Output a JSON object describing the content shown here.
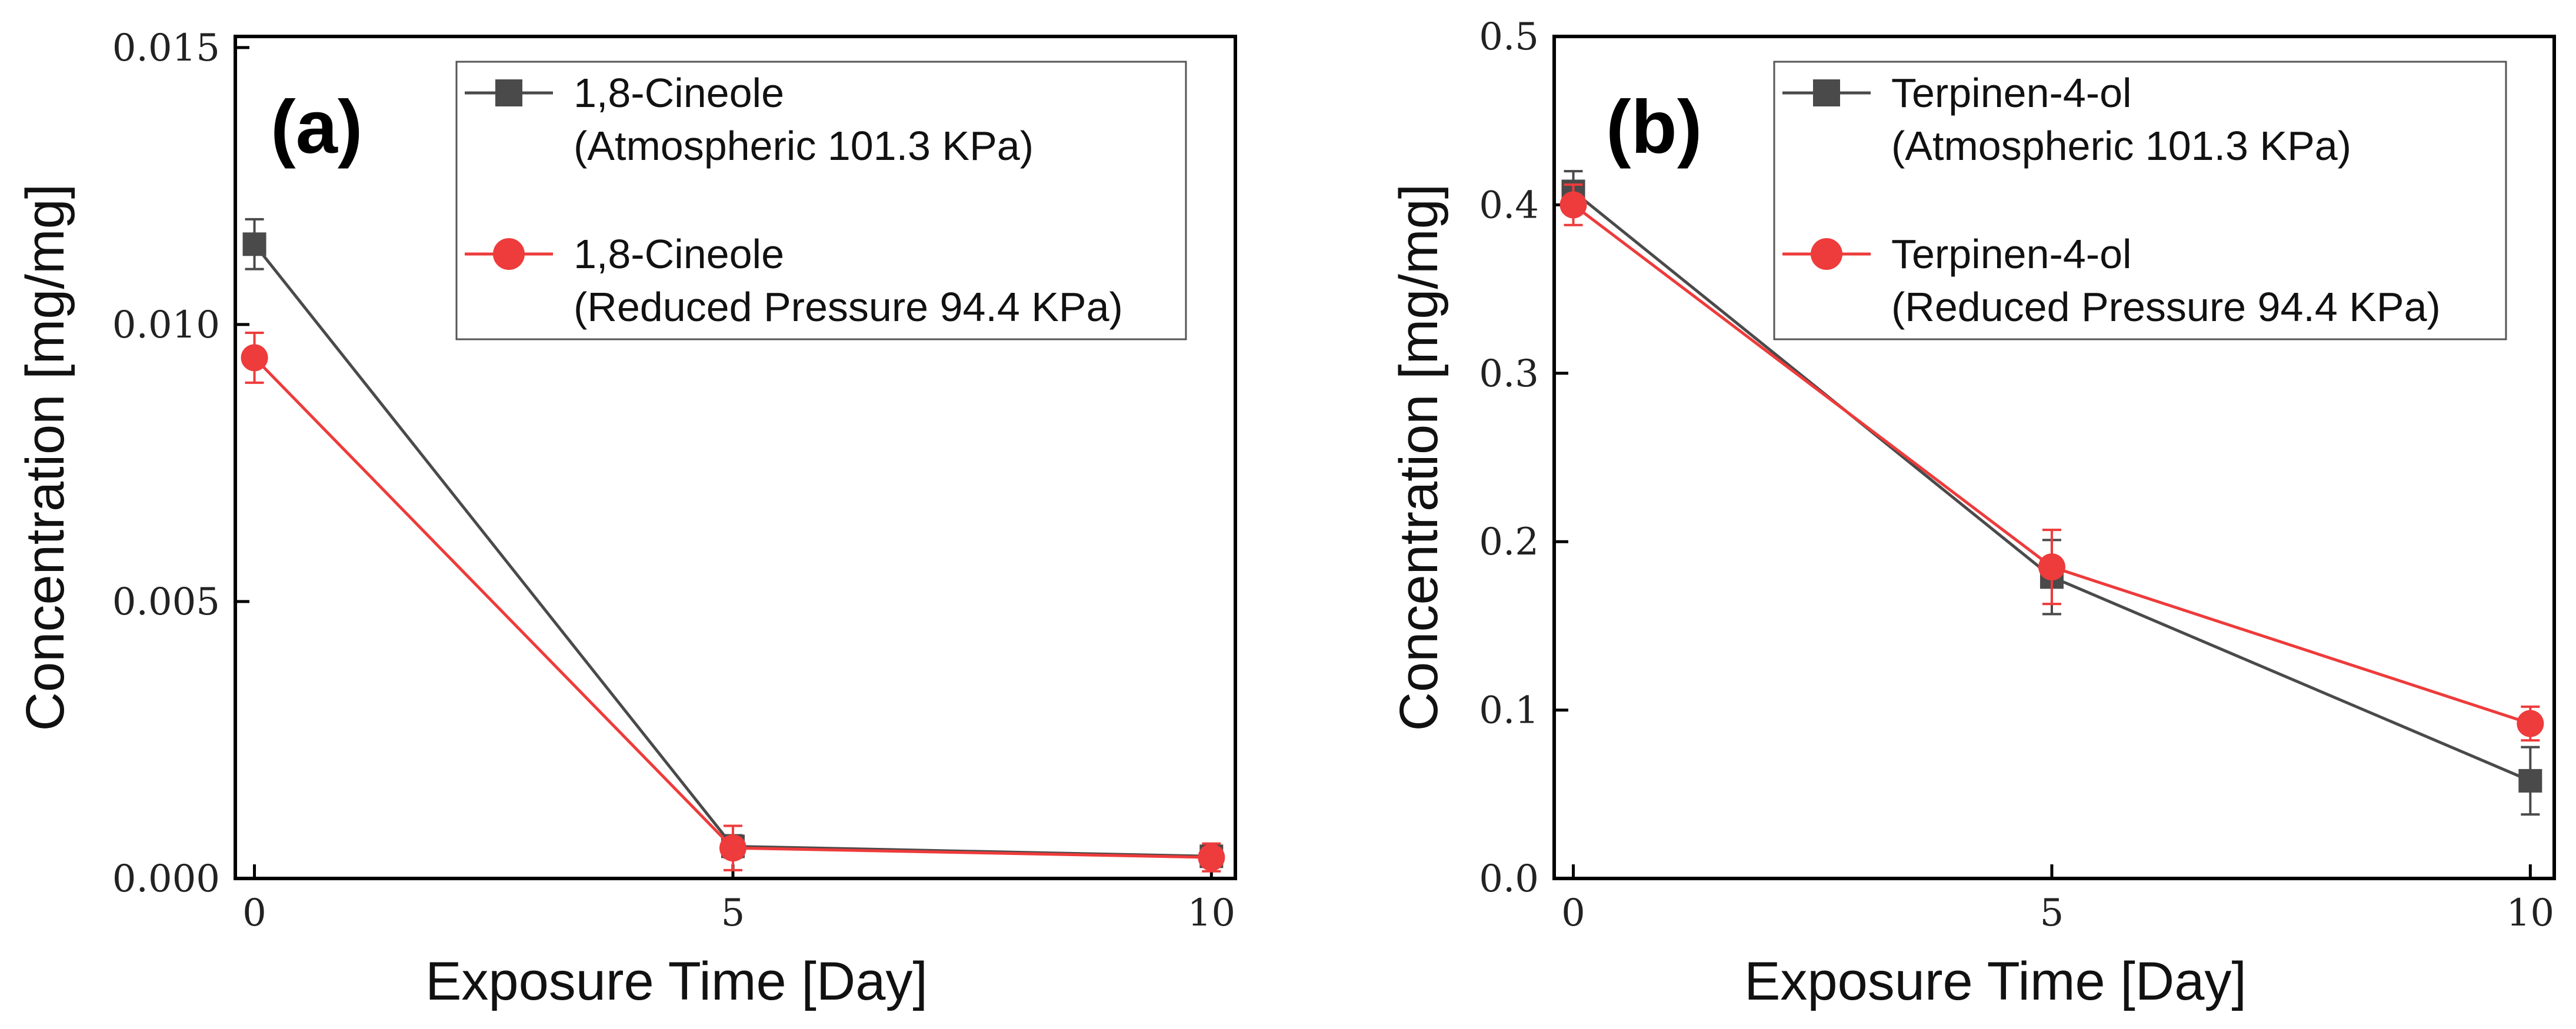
{
  "colors": {
    "series_atm": "#4a4a4a",
    "series_red": "#ee3b3b",
    "axis": "#000000"
  },
  "chart_data": [
    {
      "type": "line",
      "panel_label": "(a)",
      "xlabel": "Exposure Time [Day]",
      "ylabel": "Concentration [mg/mg]",
      "x": [
        0,
        5,
        10
      ],
      "xticks": [
        "0",
        "5",
        "10"
      ],
      "xlim": [
        -0.2,
        10.25
      ],
      "ylim": [
        0,
        0.0152
      ],
      "yticks": [
        "0.000",
        "0.005",
        "0.010",
        "0.015"
      ],
      "ytick_values": [
        0,
        0.005,
        0.01,
        0.015
      ],
      "legend_position": "top-right",
      "series": [
        {
          "name": "1,8-Cineole",
          "name_line2": "(Atmospheric 101.3 KPa)",
          "marker": "square",
          "color": "#4a4a4a",
          "values": [
            0.01145,
            0.00058,
            0.0004
          ],
          "errors": [
            0.00045,
            0.0002,
            0.00015
          ]
        },
        {
          "name": "1,8-Cineole",
          "name_line2": "(Reduced Pressure 94.4 KPa)",
          "marker": "circle",
          "color": "#ee3b3b",
          "values": [
            0.0094,
            0.00055,
            0.00038
          ],
          "errors": [
            0.00045,
            0.0004,
            0.00025
          ]
        }
      ]
    },
    {
      "type": "line",
      "panel_label": "(b)",
      "xlabel": "Exposure Time [Day]",
      "ylabel": "Concentration [mg/mg]",
      "x": [
        0,
        5,
        10
      ],
      "xticks": [
        "0",
        "5",
        "10"
      ],
      "xlim": [
        -0.2,
        10.25
      ],
      "ylim": [
        0,
        0.5
      ],
      "yticks": [
        "0.0",
        "0.1",
        "0.2",
        "0.3",
        "0.4",
        "0.5"
      ],
      "ytick_values": [
        0,
        0.1,
        0.2,
        0.3,
        0.4,
        0.5
      ],
      "legend_position": "top-right",
      "series": [
        {
          "name": "Terpinen-4-ol",
          "name_line2": "(Atmospheric 101.3 KPa)",
          "marker": "square",
          "color": "#4a4a4a",
          "values": [
            0.408,
            0.179,
            0.058
          ],
          "errors": [
            0.012,
            0.022,
            0.02
          ]
        },
        {
          "name": "Terpinen-4-ol",
          "name_line2": "(Reduced Pressure 94.4 KPa)",
          "marker": "circle",
          "color": "#ee3b3b",
          "values": [
            0.4,
            0.185,
            0.092
          ],
          "errors": [
            0.012,
            0.022,
            0.01
          ]
        }
      ]
    }
  ]
}
